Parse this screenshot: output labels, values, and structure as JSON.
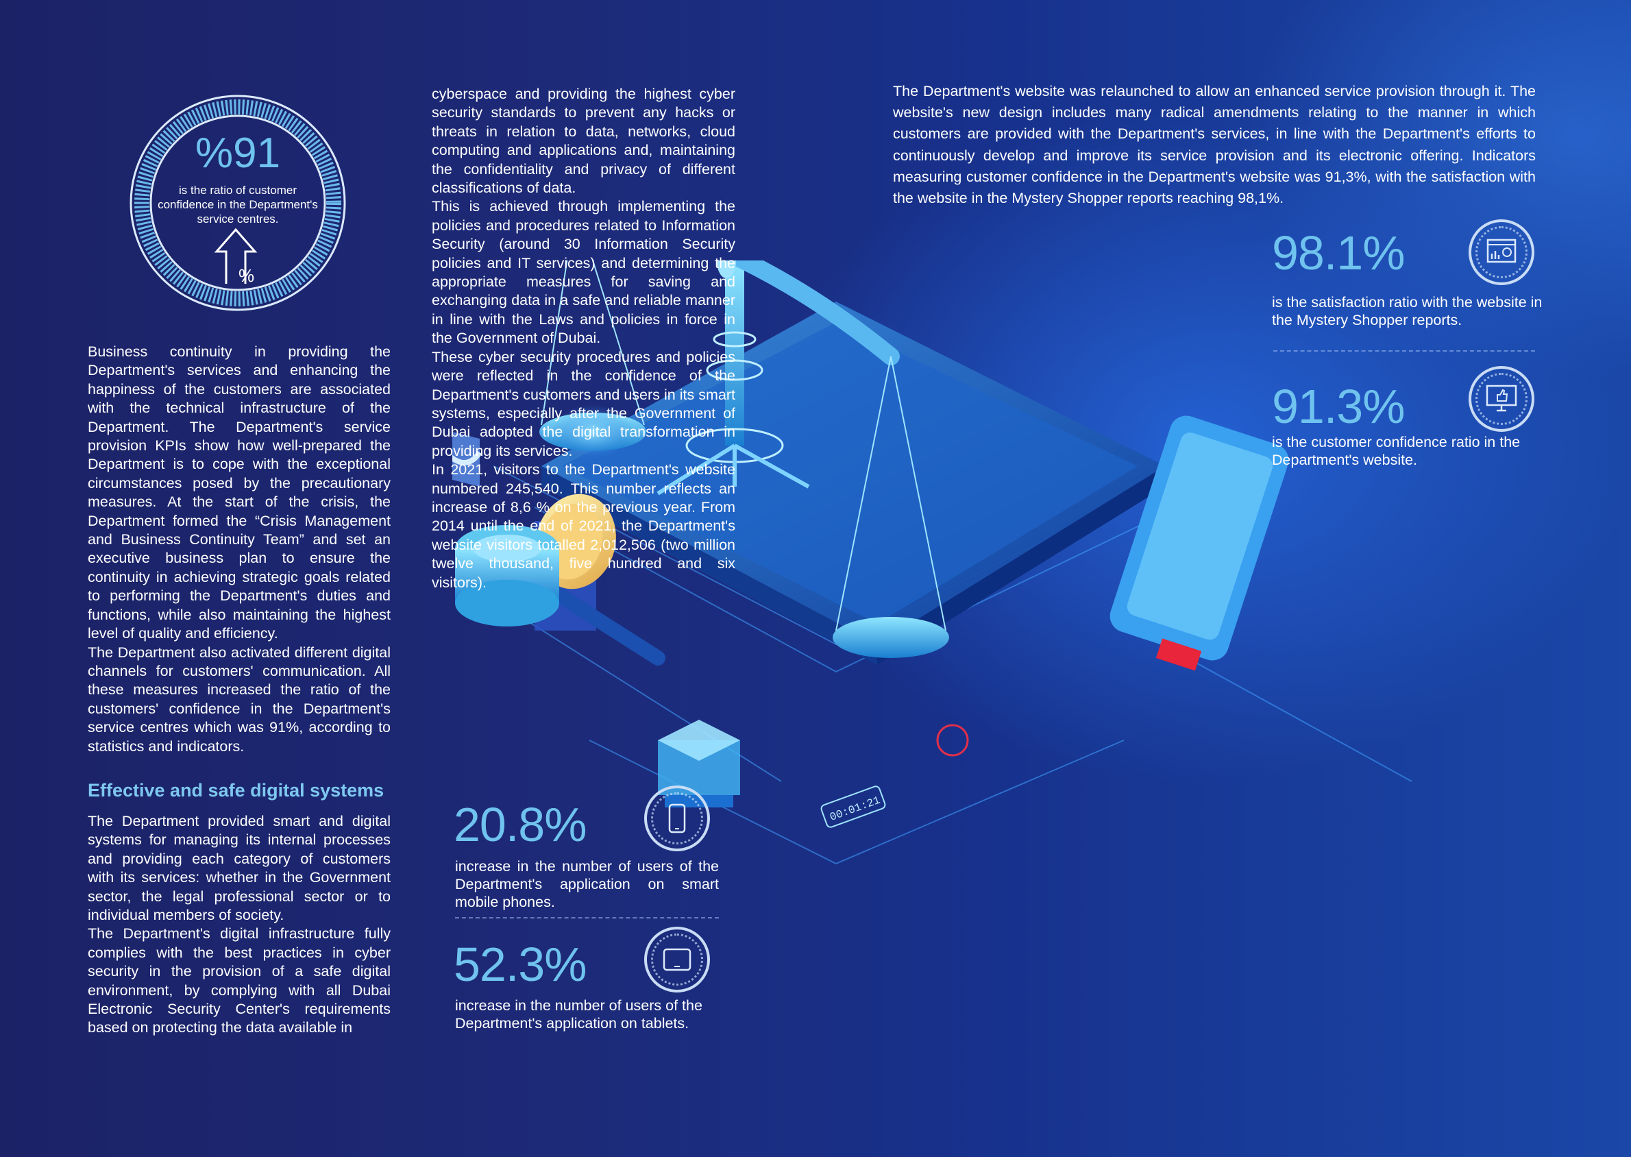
{
  "badge": {
    "value": "%91",
    "caption_line1": "is the ratio of customer",
    "caption_line2": "confidence in the Department's",
    "caption_line3": "service centres."
  },
  "col1": {
    "para1": "Business continuity in providing the Department's services and enhancing the happiness of the customers are associated with the technical infrastructure of the Department. The Department's service provision KPIs show how well-prepared the Department is to cope with the exceptional circumstances posed by the precautionary measures. At the start of the crisis, the Department formed the “Crisis Management and Business Continuity Team” and set an executive business plan to ensure the continuity in achieving strategic goals related to performing the Department's duties and functions, while also maintaining the highest level of quality and efficiency.",
    "para2": "The Department also activated different digital channels for customers' communication. All these measures increased the ratio of the customers' confidence in the Department's service centres which was 91%, according to statistics and indicators.",
    "heading": "Effective and safe digital systems",
    "para3": "The Department provided smart and digital systems for managing its internal processes and providing each category of customers with its services: whether in the Government sector, the legal professional sector or to individual members of society.",
    "para4": "The Department's digital infrastructure fully complies with the best practices in cyber security in the provision of a safe digital environment, by complying with all Dubai Electronic Security Center's requirements based on protecting the data available in"
  },
  "col2": {
    "para1": "cyberspace and providing the highest cyber security standards to prevent any hacks or threats in relation to data, networks, cloud computing and applications and, maintaining the confidentiality and privacy of different classifications of data.",
    "para2": "This is achieved through implementing the policies and procedures related to Information Security (around 30 Information Security policies and IT services) and determining the appropriate measures for saving and exchanging data in a safe and reliable manner in line with the Laws and policies in force in the Government of Dubai.",
    "para3": "These cyber security procedures and policies were reflected in the confidence of the Department's customers and users in its smart systems, especially after the Government of Dubai adopted the digital transformation in providing its services.",
    "para4": "In 2021, visitors to the Department's website numbered 245,540. This number reflects an increase of 8,6 % on the previous year. From 2014 until the end of 2021, the Department's website visitors totalled 2,012,506 (two million twelve thousand, five hundred and six visitors)."
  },
  "col3": {
    "para1": "The Department's website was relaunched to allow an enhanced service provision through it. The website's new design includes many radical amendments relating to the manner in which customers are provided with the Department's services, in line with the Department's efforts to continuously develop and improve its service provision and its electronic offering. Indicators measuring customer confidence in the Department's website was 91,3%, with the satisfaction with the website in the Mystery Shopper reports reaching 98,1%."
  },
  "stats": {
    "s1_value": "98.1%",
    "s1_caption": "is the satisfaction ratio with the website in the Mystery Shopper reports.",
    "s2_value": "91.3%",
    "s2_caption": "is the customer confidence ratio in the Department's website.",
    "s3_value": "20.8%",
    "s3_caption": "increase in the number of users of the Department's application on smart mobile phones.",
    "s4_value": "52.3%",
    "s4_caption": "increase in the number of users of the Department's application on tablets."
  },
  "illustration": {
    "timer": "00:01:21"
  },
  "icons": [
    "arrow-up-percent-icon",
    "website-icon",
    "monitor-like-icon",
    "smartphone-icon",
    "tablet-icon"
  ]
}
